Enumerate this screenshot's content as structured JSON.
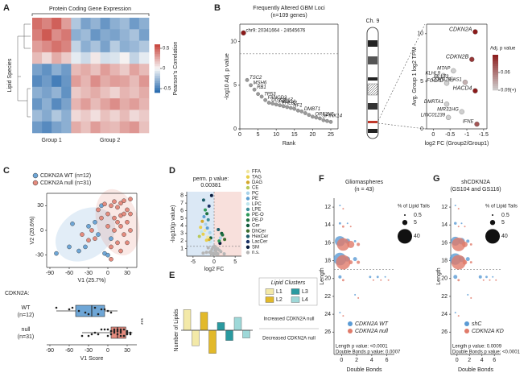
{
  "chart_data": [
    {
      "type": "heatmap",
      "label": "A",
      "title": "Protein Coding Gene Expression",
      "y_label": "Lipid Species",
      "x_groups": [
        "Group 1",
        "Group 2"
      ],
      "group_columns": [
        4,
        8
      ],
      "colorbar_label": "Pearson's Correlation",
      "colorbar_ticks": [
        -0.5,
        0,
        0.5
      ],
      "clim": [
        -0.6,
        0.6
      ],
      "matrix": [
        [
          0.45,
          0.38,
          0.5,
          0.3,
          -0.2,
          -0.35,
          -0.28,
          -0.4,
          -0.3,
          -0.25,
          -0.38,
          -0.3
        ],
        [
          0.4,
          0.52,
          0.35,
          0.42,
          -0.3,
          -0.25,
          -0.4,
          -0.32,
          -0.35,
          -0.28,
          -0.22,
          -0.36
        ],
        [
          0.3,
          0.36,
          0.44,
          0.38,
          -0.15,
          -0.3,
          -0.22,
          -0.35,
          -0.18,
          -0.3,
          -0.26,
          -0.2
        ],
        [
          0.2,
          0.1,
          0.25,
          0.15,
          -0.05,
          -0.12,
          0.05,
          -0.1,
          -0.08,
          0.02,
          -0.15,
          -0.05
        ],
        [
          -0.35,
          -0.42,
          -0.3,
          -0.38,
          0.2,
          0.25,
          0.18,
          0.3,
          0.22,
          0.15,
          0.28,
          0.2
        ],
        [
          -0.45,
          -0.38,
          -0.5,
          -0.4,
          0.3,
          0.22,
          0.35,
          0.25,
          0.3,
          0.28,
          0.2,
          0.32
        ],
        [
          -0.3,
          -0.35,
          -0.28,
          -0.42,
          0.15,
          0.2,
          0.25,
          0.18,
          0.12,
          0.22,
          0.18,
          0.25
        ],
        [
          -0.4,
          -0.3,
          -0.45,
          -0.35,
          0.22,
          0.3,
          0.2,
          0.28,
          0.35,
          0.25,
          0.3,
          0.22
        ],
        [
          -0.25,
          -0.32,
          -0.2,
          -0.3,
          0.1,
          0.15,
          0.08,
          0.18,
          0.12,
          0.2,
          0.1,
          0.15
        ],
        [
          -0.38,
          -0.45,
          -0.35,
          -0.3,
          0.25,
          0.18,
          0.3,
          0.22,
          0.2,
          0.28,
          0.32,
          0.18
        ]
      ]
    },
    {
      "type": "scatter",
      "label": "B",
      "title": "Frequently Altered GBM Loci",
      "subtitle": "(n=109 genes)",
      "x_label": "Rank",
      "y_label": "-log10 Adj. p value",
      "chromosome_label": "Ch. 9",
      "xlim": [
        0,
        27
      ],
      "ylim": [
        0,
        12
      ],
      "xticks": [
        0,
        5,
        10,
        15,
        20,
        25
      ],
      "yticks": [
        0,
        5,
        10
      ],
      "threshold_y": 8.6,
      "x": [
        1,
        2,
        3,
        4,
        5,
        6,
        7,
        8,
        9,
        10,
        11,
        12,
        13,
        14,
        15,
        16,
        17,
        18,
        19,
        20,
        21,
        22,
        23,
        24,
        25
      ],
      "y": [
        11.0,
        5.6,
        5.0,
        4.5,
        4.0,
        3.7,
        3.3,
        3.0,
        2.9,
        2.8,
        2.7,
        2.6,
        2.5,
        2.4,
        2.3,
        2.1,
        2.0,
        1.8,
        1.6,
        1.4,
        1.3,
        1.2,
        1.0,
        0.9,
        0.8
      ],
      "point_labels": [
        "chr9: 20341664 - 24545676",
        "TSC2",
        "MSH6",
        "RB1",
        null,
        "TP53",
        "FANCD2",
        "UGT2B17",
        null,
        "PIK3CA",
        "PALB2",
        null,
        null,
        "NF1",
        null,
        null,
        "DMBT1",
        null,
        null,
        "OR52N5",
        null,
        "SPINK14",
        null,
        null,
        null
      ],
      "colors": [
        "#8b1a1a",
        "#9a9a9a",
        "#9a9a9a",
        "#9a9a9a",
        "#9a9a9a",
        "#9a9a9a",
        "#9a9a9a",
        "#9a9a9a",
        "#9a9a9a",
        "#9a9a9a",
        "#9a9a9a",
        "#9a9a9a",
        "#9a9a9a",
        "#9a9a9a",
        "#9a9a9a",
        "#9a9a9a",
        "#9a9a9a",
        "#9a9a9a",
        "#9a9a9a",
        "#9a9a9a",
        "#9a9a9a",
        "#9a9a9a",
        "#9a9a9a",
        "#9a9a9a",
        "#9a9a9a"
      ]
    },
    {
      "type": "scatter",
      "x_label": "log2 FC (Group2/Group1)",
      "y_label": "Avg. Group 1 log2 TPM",
      "xlim": [
        0.2,
        -1.6
      ],
      "xticks": [
        0,
        -0.5,
        -1,
        -1.5
      ],
      "ylim": [
        0,
        11
      ],
      "yticks": [
        0,
        5,
        10
      ],
      "colorbar_label": "Adj. p value",
      "colorbar_ticks": [
        0.06,
        {
          "value": 0.09,
          "label": "0.09(+)"
        }
      ],
      "clim": [
        0.03,
        0.09
      ],
      "color_range": [
        "#8b1a1a",
        "#cfcfcf"
      ],
      "point_labels": [
        "CDKN2A",
        "CDKN2B",
        "HACD4",
        "IFNE",
        "MTAP",
        "KLHL9",
        "MLLT3",
        "FOCAD",
        "CDKN2B-AS1",
        "DMRTA1",
        "LINC01239",
        "MIR31HG"
      ],
      "x": [
        -1.25,
        -1.15,
        -1.25,
        -1.3,
        -0.6,
        -0.3,
        -0.55,
        -0.4,
        -0.95,
        -0.4,
        -0.45,
        -0.85
      ],
      "y": [
        10.2,
        7.3,
        4.0,
        0.5,
        6.1,
        5.6,
        5.2,
        4.8,
        4.9,
        2.6,
        1.2,
        1.8
      ],
      "p_values": [
        0.03,
        0.04,
        0.03,
        0.05,
        0.09,
        0.09,
        0.09,
        0.09,
        0.08,
        0.09,
        0.09,
        0.09
      ]
    },
    {
      "type": "scatter",
      "label": "C",
      "x_label": "V1 (25.7%)",
      "y_label": "V2 (20.6%)",
      "xlim": [
        -95,
        45
      ],
      "xticks": [
        -90,
        -60,
        -30,
        0,
        30
      ],
      "ylim": [
        -45,
        45
      ],
      "yticks": [
        -30,
        0,
        30
      ],
      "series": [
        {
          "name": "CDKN2A WT (n=12)",
          "color": "#6ea6d6",
          "x": [
            -80,
            -60,
            -45,
            -35,
            -30,
            -20,
            -5,
            0,
            5,
            -15,
            -55,
            -10
          ],
          "y": [
            -28,
            -20,
            -25,
            -20,
            5,
            10,
            -28,
            -30,
            -10,
            -5,
            8,
            30
          ]
        },
        {
          "name": "CDKN2A null (n=31)",
          "color": "#e58b7e",
          "x": [
            -5,
            5,
            10,
            15,
            20,
            25,
            30,
            35,
            -15,
            0,
            10,
            20,
            30,
            35,
            25,
            15,
            5,
            -20,
            -25,
            -40,
            0,
            10,
            20,
            30,
            25,
            -10,
            15,
            35,
            5,
            -30,
            20
          ],
          "y": [
            32,
            30,
            35,
            28,
            33,
            36,
            25,
            38,
            25,
            20,
            15,
            18,
            10,
            0,
            -5,
            -15,
            -20,
            -10,
            0,
            -5,
            5,
            0,
            5,
            -15,
            20,
            15,
            10,
            20,
            -35,
            -12,
            -25
          ]
        }
      ]
    },
    {
      "type": "box",
      "group_title": "CDKN2A:",
      "categories": [
        "WT",
        "null"
      ],
      "category_counts": [
        "(n=12)",
        "(n=31)"
      ],
      "significance": "***",
      "x_label": "V1 Score",
      "xlim": [
        -95,
        45
      ],
      "xticks": [
        -90,
        -60,
        -30,
        0,
        30
      ],
      "stats": [
        {
          "min": -80,
          "q1": -50,
          "median": -25,
          "q3": -5,
          "max": 15
        },
        {
          "min": -40,
          "q1": 5,
          "median": 15,
          "q3": 28,
          "max": 38
        }
      ]
    },
    {
      "type": "scatter",
      "label": "D",
      "perm_p_label": "perm. p value:",
      "perm_p_value": 0.00381,
      "x_label": "log2 FC",
      "y_label": "-log10(p value)",
      "xlim": [
        -6.5,
        6.5
      ],
      "xticks": [
        -5,
        0,
        5
      ],
      "ylim": [
        0,
        8.5
      ],
      "yticks": [
        1,
        2,
        3,
        4,
        5,
        6,
        7,
        8
      ],
      "threshold_y": 1.3,
      "series": [
        {
          "name": "FFA",
          "color": "#f1e7a0",
          "x": [
            -1.5,
            -2.2
          ],
          "y": [
            2.5,
            3.4
          ]
        },
        {
          "name": "TAG",
          "color": "#e8cf4a",
          "x": [
            -3.2,
            -2.6,
            -1.8
          ],
          "y": [
            3.8,
            2.9,
            2.1
          ]
        },
        {
          "name": "DAG",
          "color": "#d4a82a",
          "x": [
            -2.8,
            -1.2
          ],
          "y": [
            4.6,
            2.2
          ]
        },
        {
          "name": "CE",
          "color": "#b7c95a",
          "x": [
            -3.5
          ],
          "y": [
            2.6
          ]
        },
        {
          "name": "PC",
          "color": "#a9d3ea",
          "x": [
            -1.0,
            -2.0,
            1.5
          ],
          "y": [
            3.1,
            4.2,
            2.4
          ]
        },
        {
          "name": "PE",
          "color": "#5c9ed1",
          "x": [
            -2.4,
            -1.6
          ],
          "y": [
            5.2,
            3.7
          ]
        },
        {
          "name": "LPC",
          "color": "#bfe6ee",
          "x": [
            -3.0,
            -0.9
          ],
          "y": [
            3.2,
            1.9
          ]
        },
        {
          "name": "LPE",
          "color": "#3f8f9a",
          "x": [
            -1.4
          ],
          "y": [
            4.8
          ]
        },
        {
          "name": "PE-O",
          "color": "#2f9a5a",
          "x": [
            -2.1,
            1.2
          ],
          "y": [
            6.1,
            2.0
          ]
        },
        {
          "name": "PE-P",
          "color": "#1f7040",
          "x": [
            -1.7,
            2.0
          ],
          "y": [
            5.6,
            2.8
          ]
        },
        {
          "name": "Cer",
          "color": "#0f5a3a",
          "x": [
            1.8,
            -0.8
          ],
          "y": [
            3.0,
            2.4
          ]
        },
        {
          "name": "DhCer",
          "color": "#3c6e2e",
          "x": [
            2.5
          ],
          "y": [
            2.2
          ]
        },
        {
          "name": "HexCer",
          "color": "#1d5c6a",
          "x": [
            -2.5,
            1.0
          ],
          "y": [
            7.4,
            3.5
          ]
        },
        {
          "name": "LacCer",
          "color": "#1c3266",
          "x": [
            -1.2
          ],
          "y": [
            6.6
          ]
        },
        {
          "name": "SM",
          "color": "#0b1d3e",
          "x": [
            -0.6,
            1.4
          ],
          "y": [
            8.0,
            1.7
          ]
        },
        {
          "name": "n.s.",
          "color": "#b5b5b5",
          "x": [
            -1.0,
            -0.5,
            0,
            0.4,
            0.8,
            -0.3,
            0.2,
            -0.8,
            0.6,
            1.2,
            -1.4,
            0.1,
            -0.2,
            0.9,
            -0.6,
            0.3,
            1.6,
            -1.8,
            2.4,
            -2.6
          ],
          "y": [
            0.5,
            0.9,
            0.3,
            0.7,
            1.0,
            1.2,
            0.2,
            0.6,
            0.4,
            0.8,
            1.1,
            1.3,
            0.4,
            0.3,
            0.2,
            1.0,
            0.6,
            0.5,
            0.3,
            0.4
          ]
        }
      ]
    },
    {
      "type": "bar",
      "label": "E",
      "y_label": "Number of Lipids",
      "legend_title": "Lipid Clusters",
      "categories": [
        "Increased CDKN2A null",
        "Decreased CDKN2A null"
      ],
      "ylim": [
        -10,
        10
      ],
      "series": [
        {
          "name": "L1",
          "color": "#f3e9a8",
          "values": [
            8,
            -6
          ]
        },
        {
          "name": "L2",
          "color": "#e2b92a",
          "values": [
            7,
            -9
          ]
        },
        {
          "name": "L3",
          "color": "#2a9aa0",
          "values": [
            3,
            -4
          ]
        },
        {
          "name": "L4",
          "color": "#9ed8d8",
          "values": [
            5,
            -3
          ]
        }
      ]
    },
    {
      "type": "bubble",
      "label": "F",
      "title": "Gliomaspheres",
      "subtitle": "(n = 43)",
      "x_label": "Double Bonds",
      "y_label": "Length",
      "xlim": [
        -1,
        7
      ],
      "xticks": [
        0,
        2,
        4,
        6
      ],
      "ylim": [
        28.5,
        11
      ],
      "yticks": [
        12,
        14,
        16,
        18,
        20,
        22,
        24,
        26
      ],
      "threshold_y": 19,
      "size_legend_title": "% of Lipid Tails",
      "size_legend": [
        0.5,
        5,
        40
      ],
      "notes": [
        "Length p value: <0.0001",
        "Double Bonds p value: 0.0007"
      ],
      "series": [
        {
          "name": "CDKN2A WT",
          "color": "#5b9bd5",
          "x": [
            0,
            0,
            1,
            0,
            1,
            2,
            0,
            1,
            2,
            0,
            4,
            5,
            6,
            2,
            0
          ],
          "y": [
            12,
            14,
            14,
            16,
            16,
            16,
            18,
            18,
            18,
            20,
            20,
            20,
            20,
            22,
            24
          ],
          "sizes": [
            0.5,
            1,
            0.5,
            20,
            5,
            1,
            30,
            5,
            3,
            2,
            1,
            1,
            0.5,
            0.5,
            0.5
          ]
        },
        {
          "name": "CDKN2A null",
          "color": "#e07b6a",
          "x": [
            0,
            0,
            1,
            0,
            1,
            2,
            0,
            1,
            2,
            0,
            4,
            5,
            6,
            2,
            0
          ],
          "y": [
            12,
            14,
            14,
            16,
            16,
            16,
            18,
            18,
            18,
            20,
            20,
            20,
            20,
            22,
            24
          ],
          "sizes": [
            0.5,
            1,
            0.5,
            30,
            10,
            2,
            40,
            3,
            2,
            1,
            0.5,
            0.5,
            0.5,
            0.5,
            0.5
          ]
        }
      ]
    },
    {
      "type": "bubble",
      "label": "G",
      "title": "shCDKN2A",
      "subtitle": "(GS104 and GS116)",
      "x_label": "Double Bonds",
      "y_label": "Length",
      "xlim": [
        -1,
        7
      ],
      "xticks": [
        0,
        2,
        4,
        6
      ],
      "ylim": [
        28.5,
        11
      ],
      "yticks": [
        12,
        14,
        16,
        18,
        20,
        22,
        24,
        26
      ],
      "threshold_y": 19,
      "size_legend_title": "% of Lipid Tails",
      "size_legend": [
        0.5,
        5,
        40
      ],
      "notes": [
        "Length p value: 0.0009",
        "Double Bonds p value: <0.0001"
      ],
      "series": [
        {
          "name": "shC",
          "color": "#5b9bd5",
          "x": [
            0,
            0,
            1,
            0,
            1,
            2,
            0,
            1,
            2,
            0,
            4,
            5,
            6,
            2,
            0
          ],
          "y": [
            12,
            14,
            14,
            16,
            16,
            16,
            18,
            18,
            18,
            20,
            20,
            20,
            20,
            22,
            24
          ],
          "sizes": [
            0.5,
            1.5,
            0.5,
            15,
            8,
            2,
            25,
            6,
            3,
            3,
            2,
            1,
            0.5,
            0.5,
            0.5
          ]
        },
        {
          "name": "CDKN2A KD",
          "color": "#e07b6a",
          "x": [
            0,
            0,
            1,
            0,
            1,
            2,
            0,
            1,
            2,
            0,
            4,
            5,
            6,
            2,
            0
          ],
          "y": [
            12,
            14,
            14,
            16,
            16,
            16,
            18,
            18,
            18,
            20,
            20,
            20,
            20,
            22,
            24
          ],
          "sizes": [
            0.5,
            0.5,
            0.5,
            35,
            6,
            1,
            40,
            4,
            1,
            1,
            0.5,
            0.5,
            0.5,
            0.5,
            0.5
          ]
        }
      ]
    }
  ]
}
